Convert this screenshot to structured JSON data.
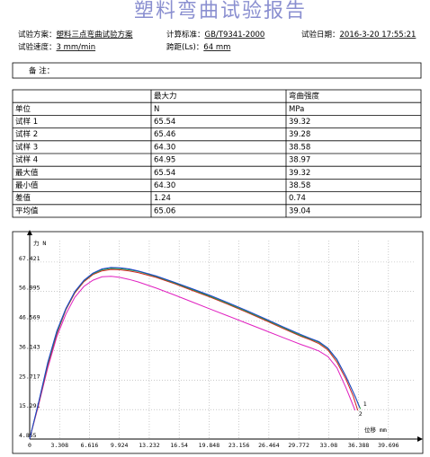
{
  "header": {
    "title": "塑料弯曲试验报告"
  },
  "info": [
    [
      {
        "label": "试验方案：",
        "value": "塑料三点弯曲试验方案"
      },
      {
        "label": "计算标准：",
        "value": "GB/T9341-2000"
      },
      {
        "label": "试验日期：",
        "value": "2016-3-20  17:55:21"
      }
    ],
    [
      {
        "label": "试验速度：",
        "value": "3 mm/min"
      },
      {
        "label": "跨距(Ls)：",
        "value": "64 mm"
      }
    ]
  ],
  "remarks": {
    "label": "备  注："
  },
  "table": {
    "header": [
      "最大力",
      "弯曲强度"
    ],
    "rows": [
      [
        "单位",
        "N",
        "MPa"
      ],
      [
        "试样 1",
        "65.54",
        "39.32"
      ],
      [
        "试样 2",
        "65.46",
        "39.28"
      ],
      [
        "试样 3",
        "64.30",
        "38.58"
      ],
      [
        "试样 4",
        "64.95",
        "38.97"
      ],
      [
        "最大值",
        "65.54",
        "39.32"
      ],
      [
        "最小值",
        "64.30",
        "38.58"
      ],
      [
        "差值",
        "1.24",
        "0.74"
      ],
      [
        "平均值",
        "65.06",
        "39.04"
      ]
    ]
  },
  "chart_data": {
    "type": "line",
    "y_label": "力 N",
    "x_label": "位移 mm",
    "xlim": [
      0,
      42.5
    ],
    "ylim": [
      4.865,
      75
    ],
    "xticks": [
      0,
      3.308,
      6.616,
      9.924,
      13.232,
      16.54,
      19.848,
      23.156,
      26.464,
      29.772,
      33.08,
      36.388,
      39.696
    ],
    "yticks": [
      4.865,
      15.291,
      25.717,
      36.143,
      46.569,
      56.995,
      67.421
    ],
    "grid": true,
    "series": [
      {
        "color": "#e020c0",
        "label": "2",
        "x": [
          0,
          1,
          2,
          3,
          4,
          5,
          6,
          7,
          8,
          9,
          10,
          11,
          12,
          14,
          16,
          18,
          20,
          22,
          24,
          26,
          28,
          30,
          31,
          32,
          33,
          34,
          35,
          35.5,
          36
        ],
        "values": [
          5,
          17,
          30,
          41,
          49,
          55,
          58.8,
          61,
          62.2,
          62.4,
          62,
          61.3,
          60.4,
          58.2,
          55.8,
          53.3,
          50.8,
          48.3,
          45.8,
          43.3,
          40.8,
          38.3,
          37.2,
          36,
          34,
          30,
          23,
          19,
          15
        ]
      },
      {
        "color": "#d02020",
        "x": [
          0,
          1,
          2,
          3,
          4,
          5,
          6,
          7,
          8,
          9,
          10,
          11,
          12,
          14,
          16,
          18,
          20,
          22,
          24,
          26,
          28,
          30,
          31,
          32,
          33,
          34,
          35,
          35.8,
          36.3
        ],
        "values": [
          5,
          17.5,
          31,
          42,
          50.5,
          56.5,
          60.5,
          63,
          64.3,
          64.8,
          64.7,
          64.3,
          63.7,
          62,
          59.8,
          57.4,
          55,
          52.4,
          49.7,
          46.9,
          44,
          41.2,
          40,
          38.6,
          36.3,
          32,
          26,
          20,
          15
        ]
      },
      {
        "color": "#20a040",
        "x": [
          0,
          1,
          2,
          3,
          4,
          5,
          6,
          7,
          8,
          9,
          10,
          11,
          12,
          14,
          16,
          18,
          20,
          22,
          24,
          26,
          28,
          30,
          31,
          32,
          33,
          34,
          35,
          36,
          36.6
        ],
        "values": [
          5,
          17.8,
          31.5,
          42.5,
          50.8,
          56.8,
          60.8,
          63.3,
          64.7,
          65.2,
          65.1,
          64.7,
          64.1,
          62.3,
          60.1,
          57.7,
          55.3,
          52.7,
          50,
          47.2,
          44.3,
          41.5,
          40.3,
          39,
          36.8,
          32.8,
          27,
          20,
          15.5
        ]
      },
      {
        "color": "#2040d0",
        "label": "1",
        "x": [
          0,
          1,
          2,
          3,
          4,
          5,
          6,
          7,
          8,
          9,
          10,
          11,
          12,
          14,
          16,
          18,
          20,
          22,
          24,
          26,
          28,
          30,
          31,
          32,
          33,
          34,
          35,
          36,
          36.5
        ],
        "values": [
          5,
          18,
          32,
          43,
          51,
          57,
          61,
          63.5,
          65,
          65.5,
          65.4,
          65,
          64.3,
          62.5,
          60.3,
          58,
          55.6,
          53,
          50.3,
          47.5,
          44.6,
          41.8,
          40.5,
          39.3,
          37,
          33,
          27,
          20,
          16
        ]
      }
    ]
  }
}
